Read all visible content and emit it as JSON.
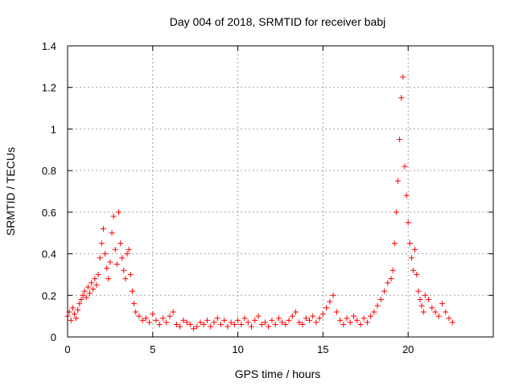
{
  "chart_data": {
    "type": "scatter",
    "title": "Day 004 of 2018, SRMTID for receiver babj",
    "xlabel": "GPS time / hours",
    "ylabel": "SRMTID / TECUs",
    "xlim": [
      0,
      25
    ],
    "ylim": [
      0,
      1.4
    ],
    "x_ticks": [
      0,
      5,
      10,
      15,
      20
    ],
    "x_tick_labels": [
      "0",
      "5",
      "10",
      "15",
      "20"
    ],
    "y_ticks": [
      0,
      0.2,
      0.4,
      0.6,
      0.8,
      1.0,
      1.2,
      1.4
    ],
    "y_tick_labels": [
      "0",
      "0.2",
      "0.4",
      "0.6",
      "0.8",
      "1",
      "1.2",
      "1.4"
    ],
    "grid": true,
    "marker": "plus",
    "color": "#ff0000",
    "series": [
      {
        "name": "SRMTID",
        "x": [
          0.0,
          0.1,
          0.2,
          0.3,
          0.4,
          0.5,
          0.6,
          0.7,
          0.8,
          0.9,
          1.0,
          1.1,
          1.2,
          1.3,
          1.4,
          1.5,
          1.6,
          1.7,
          1.8,
          1.9,
          2.0,
          2.1,
          2.2,
          2.3,
          2.4,
          2.5,
          2.6,
          2.7,
          2.8,
          2.9,
          3.0,
          3.1,
          3.2,
          3.3,
          3.4,
          3.5,
          3.6,
          3.7,
          3.8,
          3.9,
          4.0,
          4.2,
          4.4,
          4.6,
          4.8,
          5.0,
          5.2,
          5.4,
          5.6,
          5.8,
          6.0,
          6.2,
          6.4,
          6.6,
          6.8,
          7.0,
          7.2,
          7.4,
          7.6,
          7.8,
          8.0,
          8.2,
          8.4,
          8.6,
          8.8,
          9.0,
          9.2,
          9.4,
          9.6,
          9.8,
          10.0,
          10.2,
          10.4,
          10.6,
          10.8,
          11.0,
          11.2,
          11.4,
          11.6,
          11.8,
          12.0,
          12.2,
          12.4,
          12.6,
          12.8,
          13.0,
          13.2,
          13.4,
          13.6,
          13.8,
          14.0,
          14.2,
          14.4,
          14.6,
          14.8,
          15.0,
          15.2,
          15.4,
          15.6,
          15.8,
          16.0,
          16.2,
          16.4,
          16.6,
          16.8,
          17.0,
          17.2,
          17.4,
          17.6,
          17.8,
          18.0,
          18.2,
          18.4,
          18.6,
          18.8,
          19.0,
          19.1,
          19.2,
          19.3,
          19.4,
          19.5,
          19.6,
          19.7,
          19.8,
          19.9,
          20.0,
          20.1,
          20.2,
          20.3,
          20.4,
          20.5,
          20.6,
          20.7,
          20.8,
          20.9,
          21.0,
          21.2,
          21.4,
          21.6,
          21.8,
          22.0,
          22.2,
          22.4,
          22.6
        ],
        "y": [
          0.1,
          0.12,
          0.08,
          0.14,
          0.11,
          0.09,
          0.13,
          0.16,
          0.18,
          0.2,
          0.22,
          0.19,
          0.24,
          0.21,
          0.26,
          0.23,
          0.28,
          0.25,
          0.3,
          0.38,
          0.45,
          0.52,
          0.4,
          0.33,
          0.28,
          0.36,
          0.5,
          0.58,
          0.42,
          0.35,
          0.6,
          0.45,
          0.38,
          0.32,
          0.28,
          0.4,
          0.42,
          0.3,
          0.22,
          0.16,
          0.12,
          0.1,
          0.08,
          0.09,
          0.07,
          0.11,
          0.08,
          0.06,
          0.09,
          0.07,
          0.1,
          0.12,
          0.06,
          0.05,
          0.08,
          0.07,
          0.06,
          0.04,
          0.05,
          0.07,
          0.06,
          0.08,
          0.05,
          0.07,
          0.09,
          0.06,
          0.08,
          0.05,
          0.07,
          0.06,
          0.08,
          0.06,
          0.09,
          0.07,
          0.05,
          0.08,
          0.1,
          0.06,
          0.07,
          0.05,
          0.08,
          0.06,
          0.09,
          0.07,
          0.06,
          0.08,
          0.1,
          0.12,
          0.07,
          0.06,
          0.09,
          0.08,
          0.1,
          0.07,
          0.09,
          0.11,
          0.14,
          0.17,
          0.2,
          0.12,
          0.08,
          0.06,
          0.09,
          0.07,
          0.1,
          0.08,
          0.06,
          0.09,
          0.07,
          0.1,
          0.12,
          0.15,
          0.18,
          0.22,
          0.26,
          0.28,
          0.32,
          0.45,
          0.6,
          0.75,
          0.95,
          1.15,
          1.25,
          0.82,
          0.68,
          0.55,
          0.45,
          0.38,
          0.32,
          0.42,
          0.3,
          0.22,
          0.18,
          0.15,
          0.12,
          0.2,
          0.18,
          0.14,
          0.12,
          0.1,
          0.16,
          0.12,
          0.09,
          0.07
        ]
      }
    ]
  }
}
